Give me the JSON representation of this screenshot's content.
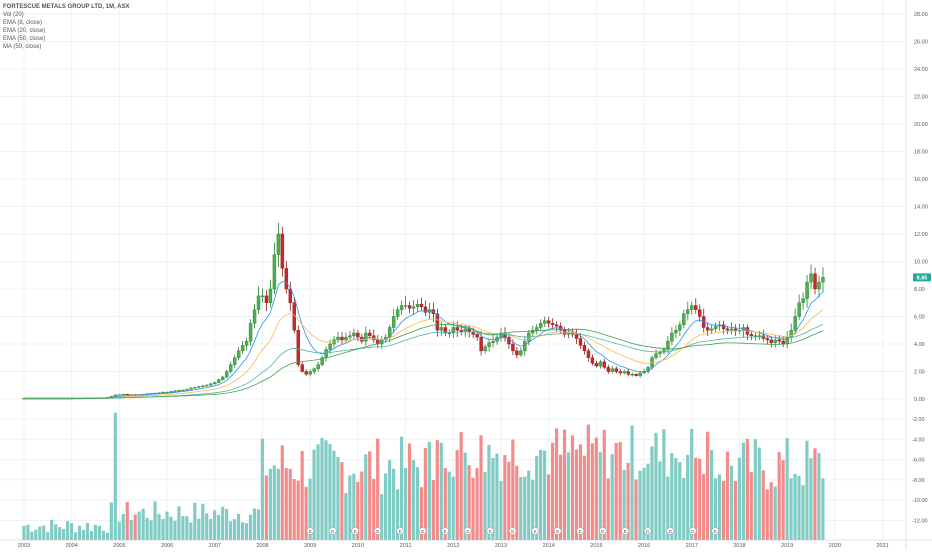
{
  "chart_data": {
    "type": "candlestick",
    "title": "FORTESCUE METALS GROUP LTD, 1M, ASX",
    "symbol": "FORTESCUE METALS GROUP LTD",
    "interval": "1M",
    "exchange": "ASX",
    "indicators": [
      "Vol (20)",
      "EMA (8, close)",
      "EMA (20, close)",
      "EMA (50, close)",
      "MA (50, close)"
    ],
    "last_price_label": "8.85",
    "colors": {
      "up": "#26a69a",
      "up_fill": "#4caf50",
      "down": "#ef5350",
      "down_fill": "#c62828",
      "vol_up": "#80cbc4",
      "vol_down": "#f48b8b",
      "ema8": "#2196f3",
      "ema20": "#ffb74d",
      "ema50": "#4db6ac",
      "ma50": "#43a047",
      "grid": "#eef1f5",
      "axis_text": "#555555",
      "price_badge": "#26a69a"
    },
    "price_axis": {
      "ylim": [
        0,
        28
      ],
      "ticks": [
        "28.00",
        "26.00",
        "24.00",
        "22.00",
        "20.00",
        "18.00",
        "16.00",
        "14.00",
        "12.00",
        "10.00",
        "8.00",
        "6.00",
        "4.00",
        "2.00",
        "0.00"
      ]
    },
    "volume_axis": {
      "ticks": [
        "-2.00",
        "-4.00",
        "-6.00",
        "-8.00",
        "-10.00",
        "-12.00"
      ]
    },
    "x_axis": {
      "ticks": [
        "2003",
        "2004",
        "2005",
        "2006",
        "2007",
        "2008",
        "2009",
        "2010",
        "2011",
        "2012",
        "2013",
        "2014",
        "2015",
        "2016",
        "2017",
        "2018",
        "2019",
        "2020",
        "2021"
      ]
    },
    "monthly_close": [
      {
        "year": 2003,
        "closes": [
          0.05,
          0.05,
          0.05,
          0.05,
          0.05,
          0.05,
          0.05,
          0.05,
          0.05,
          0.05,
          0.05,
          0.05
        ]
      },
      {
        "year": 2004,
        "closes": [
          0.05,
          0.06,
          0.06,
          0.06,
          0.07,
          0.07,
          0.08,
          0.08,
          0.1,
          0.12,
          0.2,
          0.3
        ]
      },
      {
        "year": 2005,
        "closes": [
          0.32,
          0.35,
          0.3,
          0.32,
          0.3,
          0.33,
          0.35,
          0.38,
          0.4,
          0.42,
          0.45,
          0.5
        ]
      },
      {
        "year": 2006,
        "closes": [
          0.5,
          0.55,
          0.6,
          0.62,
          0.65,
          0.7,
          0.8,
          0.85,
          0.9,
          0.95,
          1.0,
          1.1
        ]
      },
      {
        "year": 2007,
        "closes": [
          1.2,
          1.4,
          1.6,
          2.0,
          2.5,
          3.0,
          3.5,
          3.9,
          4.2,
          5.5,
          6.5,
          7.5
        ]
      },
      {
        "year": 2008,
        "closes": [
          7.5,
          7.0,
          8.0,
          10.5,
          12.0,
          9.5,
          8.0,
          7.0,
          5.0,
          2.5,
          2.0,
          1.8
        ]
      },
      {
        "year": 2009,
        "closes": [
          2.0,
          2.2,
          2.5,
          3.0,
          3.6,
          4.0,
          4.3,
          4.5,
          4.3,
          4.5,
          4.6,
          4.8
        ]
      },
      {
        "year": 2010,
        "closes": [
          4.5,
          4.2,
          4.8,
          4.6,
          4.3,
          4.0,
          4.3,
          4.5,
          5.2,
          6.0,
          6.5,
          6.8
        ]
      },
      {
        "year": 2011,
        "closes": [
          6.8,
          6.6,
          6.7,
          6.9,
          6.7,
          6.3,
          6.5,
          6.2,
          5.0,
          5.2,
          4.8,
          4.8
        ]
      },
      {
        "year": 2012,
        "closes": [
          5.2,
          5.0,
          4.9,
          5.1,
          4.9,
          4.7,
          4.5,
          3.5,
          3.8,
          4.1,
          4.2,
          4.5
        ]
      },
      {
        "year": 2013,
        "closes": [
          4.8,
          4.5,
          4.0,
          3.5,
          3.2,
          3.5,
          4.2,
          4.8,
          5.0,
          5.2,
          5.5,
          5.7
        ]
      },
      {
        "year": 2014,
        "closes": [
          5.5,
          5.4,
          5.3,
          5.0,
          4.7,
          4.8,
          4.7,
          4.4,
          3.9,
          3.5,
          3.0,
          2.6
        ]
      },
      {
        "year": 2015,
        "closes": [
          2.4,
          2.7,
          2.3,
          2.0,
          2.2,
          2.0,
          1.9,
          2.0,
          1.8,
          1.8,
          1.7,
          1.9
        ]
      },
      {
        "year": 2016,
        "closes": [
          2.0,
          2.3,
          3.0,
          3.3,
          3.4,
          3.6,
          4.2,
          4.8,
          5.0,
          5.4,
          6.2,
          6.5
        ]
      },
      {
        "year": 2017,
        "closes": [
          6.8,
          6.5,
          6.0,
          5.2,
          5.0,
          5.1,
          5.3,
          5.4,
          5.1,
          5.0,
          5.1,
          5.0
        ]
      },
      {
        "year": 2018,
        "closes": [
          5.0,
          5.2,
          4.7,
          4.6,
          4.6,
          4.6,
          4.4,
          4.3,
          4.1,
          4.3,
          4.2,
          4.0
        ]
      },
      {
        "year": 2019,
        "closes": [
          4.5,
          5.0,
          6.0,
          7.0,
          7.3,
          8.5,
          9.1,
          8.0,
          8.5,
          8.85
        ]
      }
    ],
    "event_markers": [
      "E",
      "E",
      "E",
      "E",
      "E",
      "E",
      "E",
      "E",
      "E",
      "E",
      "E",
      "E",
      "E",
      "E",
      "E",
      "D",
      "D",
      "D",
      "E"
    ]
  }
}
